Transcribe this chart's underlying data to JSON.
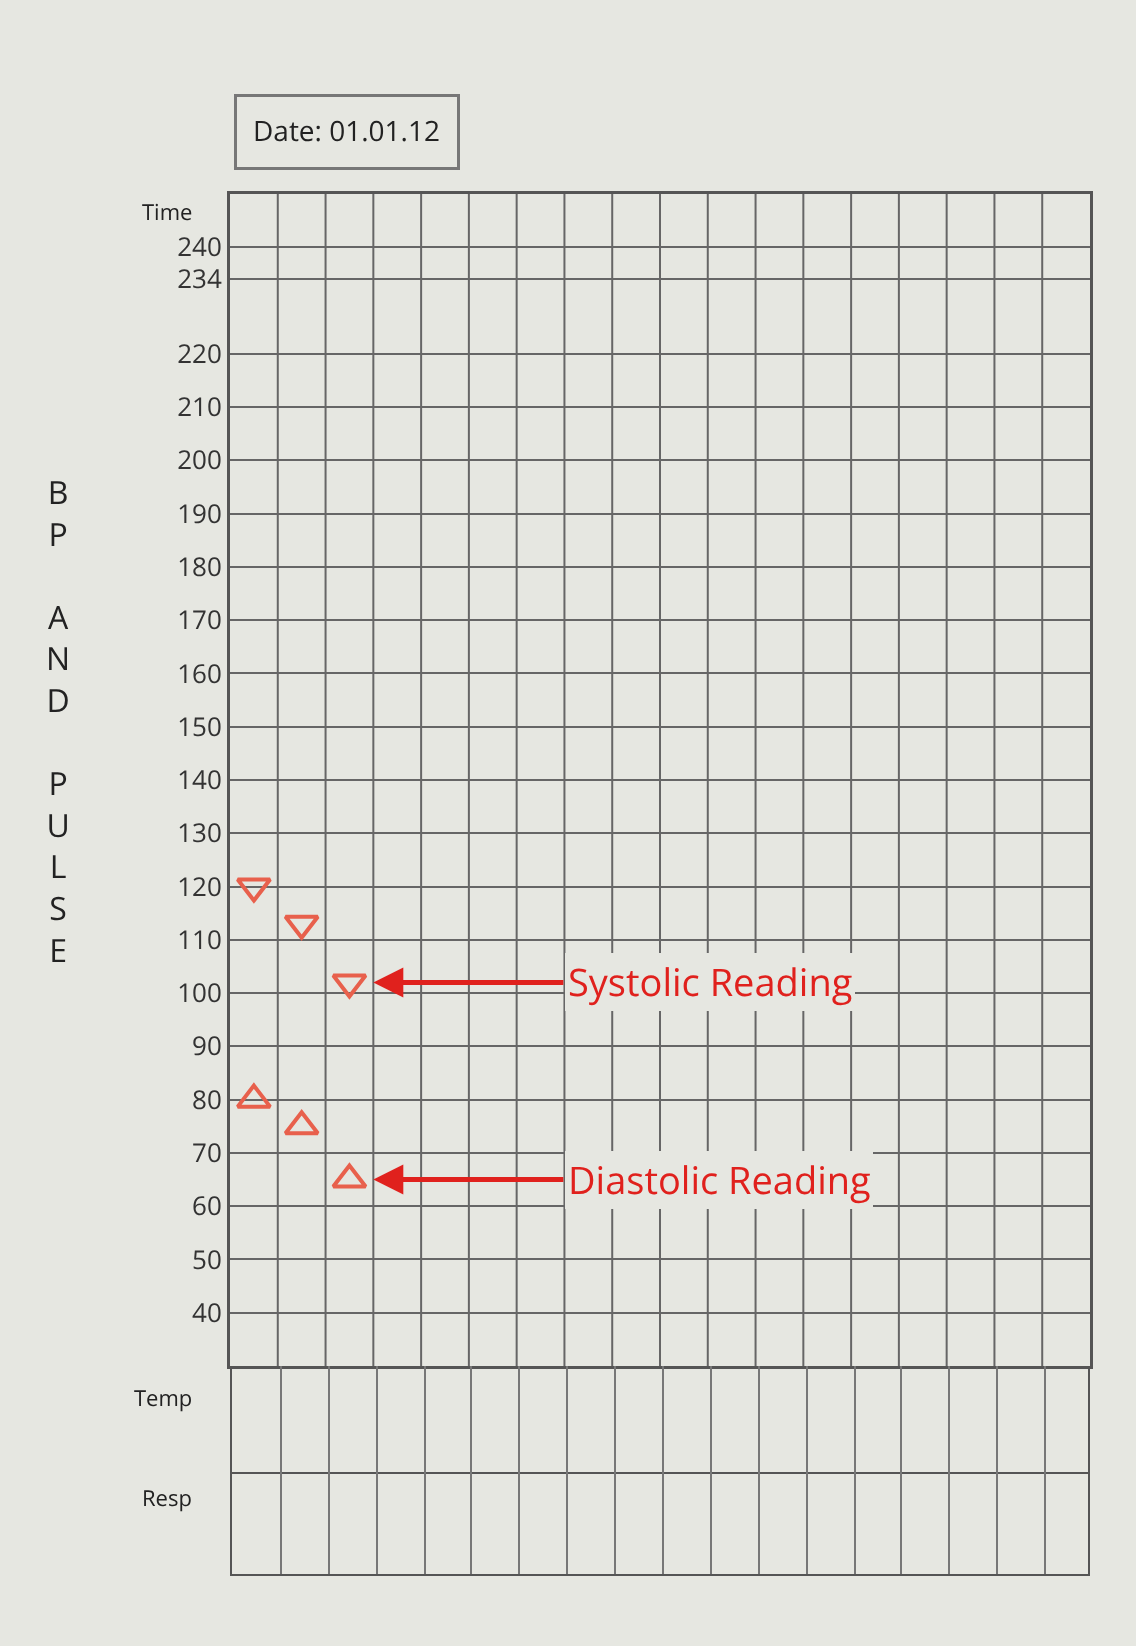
{
  "chart_data": {
    "type": "scatter",
    "ylabel": "BP AND PULSE",
    "categories": [
      null,
      null,
      null,
      null,
      null,
      null,
      null,
      null,
      null,
      null,
      null,
      null,
      null,
      null,
      null,
      null,
      null,
      null
    ],
    "series": [
      {
        "name": "Systolic Reading",
        "color": "#e8604c",
        "values": [
          120,
          113,
          102,
          null,
          null,
          null,
          null,
          null,
          null,
          null,
          null,
          null,
          null,
          null,
          null,
          null,
          null,
          null
        ]
      },
      {
        "name": "Diastolic Reading",
        "color": "#e8604c",
        "values": [
          80,
          75,
          65,
          null,
          null,
          null,
          null,
          null,
          null,
          null,
          null,
          null,
          null,
          null,
          null,
          null,
          null,
          null
        ]
      }
    ],
    "ylim": [
      30,
      250
    ],
    "yticks": [
      40,
      50,
      60,
      70,
      80,
      90,
      100,
      110,
      120,
      130,
      140,
      150,
      160,
      170,
      180,
      190,
      200,
      210,
      220,
      234,
      240
    ],
    "grid": true,
    "legend": false,
    "marker": "triangle",
    "annotations": [
      "Date: 01.01.12",
      "Time",
      "Temp",
      "Resp"
    ]
  }
}
